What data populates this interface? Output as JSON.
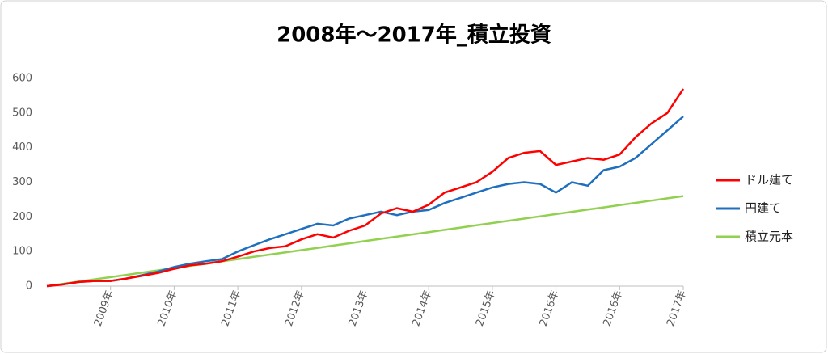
{
  "chart_data": {
    "type": "line",
    "title": "2008年～2017年_積立投資",
    "categories": [
      null,
      null,
      null,
      null,
      "2009年",
      null,
      null,
      null,
      "2010年",
      null,
      null,
      null,
      "2011年",
      null,
      null,
      null,
      "2012年",
      null,
      null,
      null,
      "2013年",
      null,
      null,
      null,
      "2014年",
      null,
      null,
      null,
      "2015年",
      null,
      null,
      null,
      "2016年",
      null,
      null,
      null,
      "2016年",
      null,
      null,
      null,
      "2017年"
    ],
    "series": [
      {
        "name": "ドル建て",
        "color": "#ff0000",
        "values": [
          0,
          5,
          12,
          15,
          15,
          22,
          30,
          38,
          50,
          60,
          65,
          72,
          85,
          100,
          110,
          115,
          135,
          150,
          140,
          160,
          175,
          210,
          225,
          215,
          235,
          270,
          285,
          300,
          330,
          370,
          385,
          390,
          350,
          360,
          370,
          365,
          380,
          430,
          470,
          500,
          570
        ]
      },
      {
        "name": "円建て",
        "color": "#1f6fbf",
        "values": [
          0,
          5,
          12,
          15,
          15,
          22,
          32,
          42,
          55,
          65,
          72,
          78,
          100,
          118,
          135,
          150,
          165,
          180,
          175,
          195,
          205,
          215,
          205,
          215,
          220,
          240,
          255,
          270,
          285,
          295,
          300,
          295,
          270,
          300,
          290,
          335,
          345,
          370,
          410,
          450,
          490
        ]
      },
      {
        "name": "積立元本",
        "color": "#92d050",
        "values": [
          0,
          6.5,
          13,
          19.5,
          26,
          32.5,
          39,
          45.5,
          52,
          58.5,
          65,
          71.5,
          78,
          84.5,
          91,
          97.5,
          104,
          110.5,
          117,
          123.5,
          130,
          136.5,
          143,
          149.5,
          156,
          162.5,
          169,
          175.5,
          182,
          188.5,
          195,
          201.5,
          208,
          214.5,
          221,
          227.5,
          234,
          240.5,
          247,
          253.5,
          260
        ]
      }
    ],
    "ylim": [
      0,
      600
    ],
    "yticks": [
      0,
      100,
      200,
      300,
      400,
      500,
      600
    ],
    "legend": "right"
  }
}
